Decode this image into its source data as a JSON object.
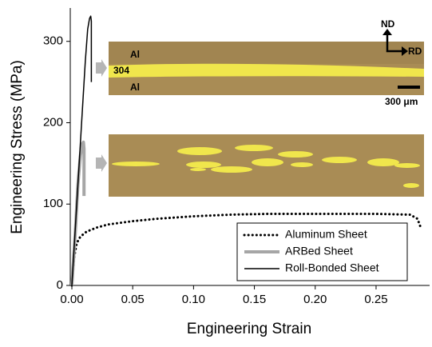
{
  "chart_data": {
    "type": "line",
    "x_label": "Engineering Strain",
    "y_label": "Engineering Stress (MPa)",
    "xlim": [
      0,
      0.294
    ],
    "ylim": [
      0,
      341
    ],
    "xticks": [
      {
        "value": 0,
        "label": "0.00"
      },
      0.05,
      {
        "value": 0.1,
        "label": "0.10"
      },
      0.15,
      {
        "value": 0.2,
        "label": "0.20"
      },
      0.25
    ],
    "yticks": [
      0,
      100,
      200,
      300
    ],
    "legend": "lower right",
    "series": [
      {
        "name": "Aluminum Sheet",
        "color": "#000000",
        "style": "dotted",
        "x": [
          0,
          0.002,
          0.004,
          0.007,
          0.012,
          0.02,
          0.03,
          0.05,
          0.07,
          0.1,
          0.13,
          0.16,
          0.2,
          0.25,
          0.278,
          0.284,
          0.287
        ],
        "values": [
          0,
          35,
          52,
          60,
          66,
          71,
          75,
          79,
          82,
          85,
          87,
          88,
          88,
          88,
          87,
          82,
          70
        ]
      },
      {
        "name": "ARBed Sheet",
        "color": "#a6a6a6",
        "style": "thick",
        "x": [
          0,
          0.003,
          0.005,
          0.007,
          0.0085,
          0.0095,
          0.01,
          0.01
        ],
        "values": [
          0,
          70,
          125,
          160,
          174,
          176,
          168,
          110
        ]
      },
      {
        "name": "Roll-Bonded Sheet",
        "color": "#000000",
        "style": "solid",
        "x": [
          0,
          0.004,
          0.008,
          0.011,
          0.013,
          0.0145,
          0.0155,
          0.016,
          0.016
        ],
        "values": [
          0,
          100,
          200,
          275,
          315,
          328,
          331,
          325,
          250
        ]
      }
    ],
    "annotations": [
      "Al",
      "304",
      "Al",
      "ND",
      "RD",
      "300 μm"
    ]
  }
}
